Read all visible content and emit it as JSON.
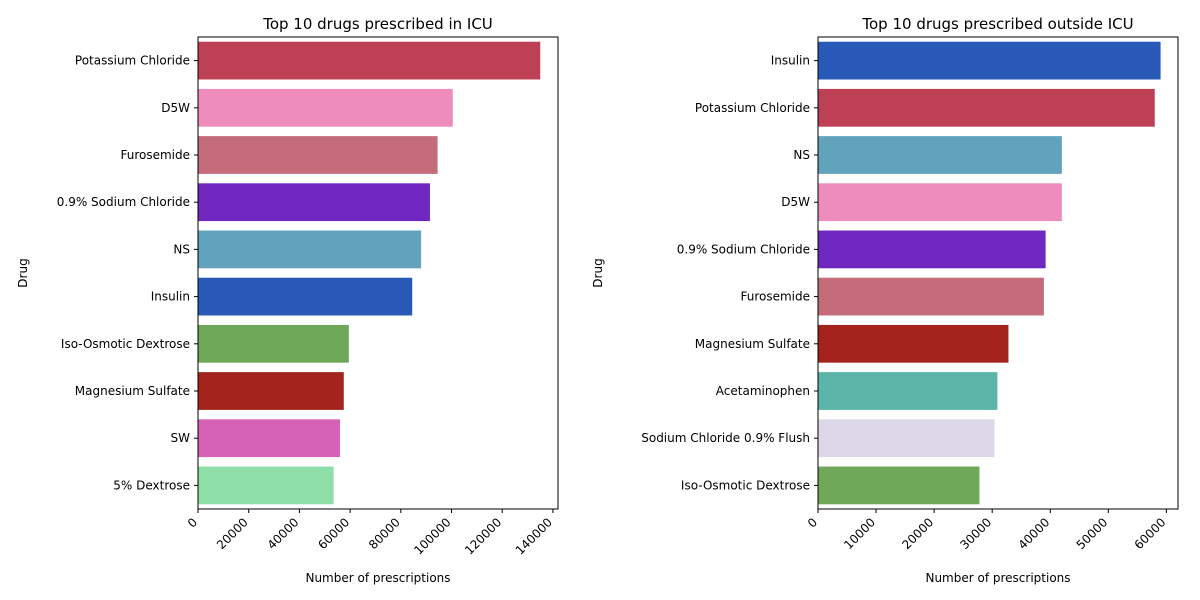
{
  "chart_data": [
    {
      "type": "bar",
      "orientation": "horizontal",
      "title": "Top 10 drugs prescribed in ICU",
      "xlabel": "Number of prescriptions",
      "ylabel": "Drug",
      "xlim": [
        0,
        142000
      ],
      "xticks": [
        0,
        20000,
        40000,
        60000,
        80000,
        100000,
        120000,
        140000
      ],
      "grid": false,
      "categories": [
        "Potassium Chloride",
        "D5W",
        "Furosemide",
        "0.9% Sodium Chloride",
        "NS",
        "Insulin",
        "Iso-Osmotic Dextrose",
        "Magnesium Sulfate",
        "SW",
        "5% Dextrose"
      ],
      "values": [
        135000,
        100500,
        94500,
        91500,
        88000,
        84500,
        59500,
        57500,
        56000,
        53500
      ],
      "colors": [
        "#be4055",
        "#ee8cbb",
        "#c46c7a",
        "#6f27c0",
        "#61a3bd",
        "#2a5ab8",
        "#70a85a",
        "#a4231d",
        "#d562b5",
        "#8edea8"
      ]
    },
    {
      "type": "bar",
      "orientation": "horizontal",
      "title": "Top 10 drugs prescribed outside ICU",
      "xlabel": "Number of prescriptions",
      "ylabel": "Drug",
      "xlim": [
        0,
        62000
      ],
      "xticks": [
        0,
        10000,
        20000,
        30000,
        40000,
        50000,
        60000
      ],
      "grid": false,
      "categories": [
        "Insulin",
        "Potassium Chloride",
        "NS",
        "D5W",
        "0.9% Sodium Chloride",
        "Furosemide",
        "Magnesium Sulfate",
        "Acetaminophen",
        "Sodium Chloride 0.9%  Flush",
        "Iso-Osmotic Dextrose"
      ],
      "values": [
        59000,
        58000,
        42000,
        42000,
        39200,
        38900,
        32800,
        30900,
        30400,
        27800
      ],
      "colors": [
        "#2a5ab8",
        "#be4055",
        "#61a3bd",
        "#ee8cbb",
        "#6f27c0",
        "#c46c7a",
        "#a4231d",
        "#5bb5a8",
        "#ddd8e8",
        "#70a85a"
      ]
    }
  ]
}
